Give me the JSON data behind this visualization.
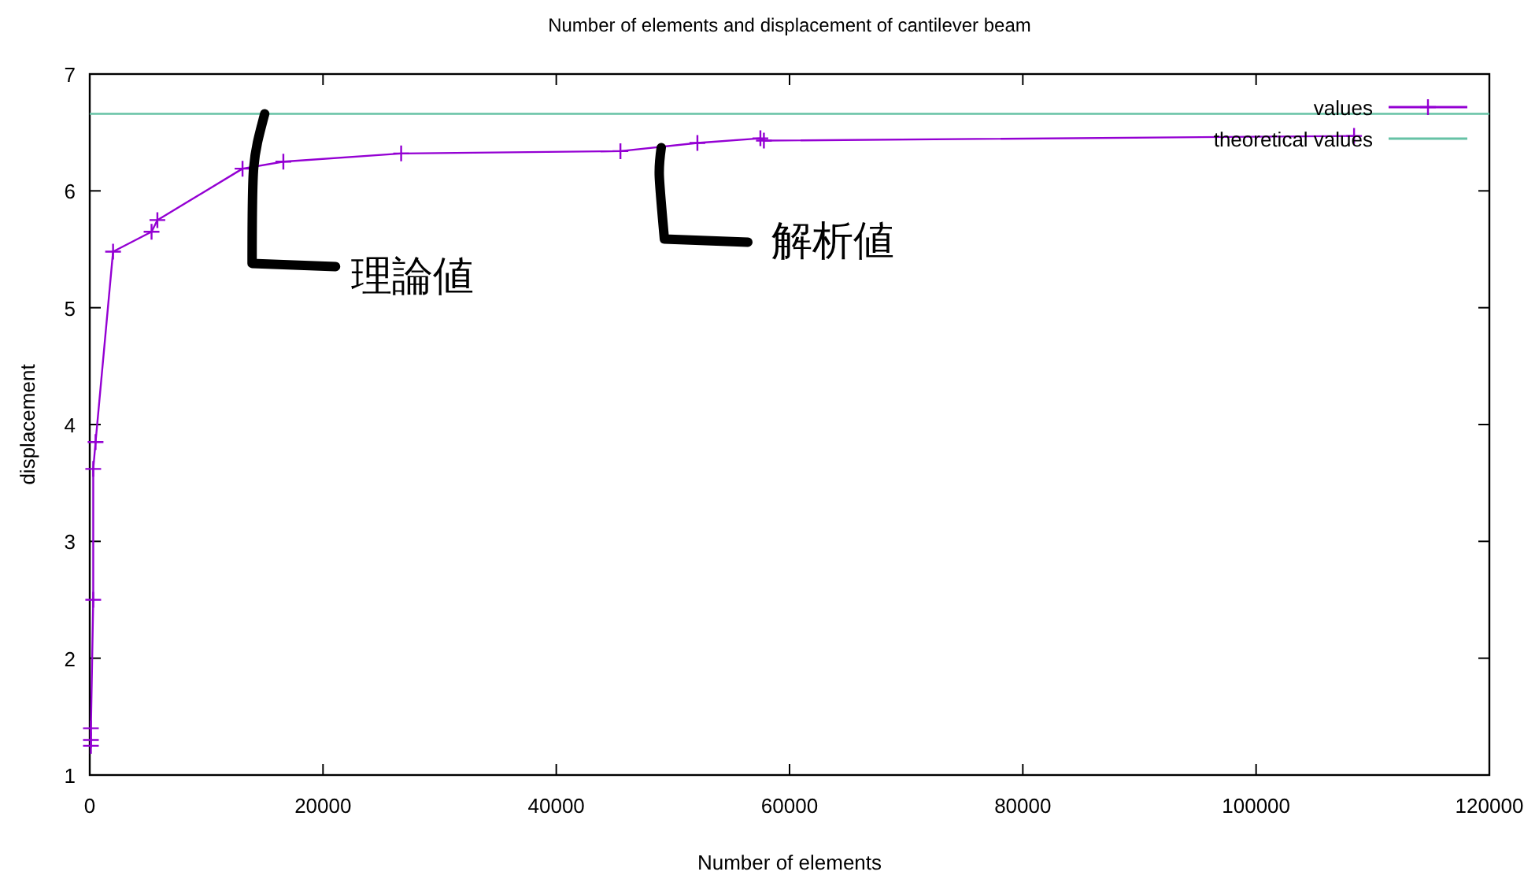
{
  "chart_data": {
    "type": "line",
    "title": "Number of elements and displacement of cantilever beam",
    "xlabel": "Number of elements",
    "ylabel": "displacement",
    "xlim": [
      0,
      120000
    ],
    "xticks": [
      0,
      20000,
      40000,
      60000,
      80000,
      100000,
      120000
    ],
    "ylim": [
      1,
      7
    ],
    "yticks": [
      1,
      2,
      3,
      4,
      5,
      6,
      7
    ],
    "grid": false,
    "legend": "top right",
    "marker": "cross",
    "line_style": "solid",
    "series": [
      {
        "name": "values",
        "color": "#9400d3",
        "x": [
          100,
          100,
          100,
          300,
          300,
          500,
          2000,
          5300,
          5800,
          13100,
          16600,
          26700,
          45500,
          52100,
          57500,
          57800,
          108400
        ],
        "values": [
          1.25,
          1.3,
          1.4,
          2.5,
          3.62,
          3.85,
          5.48,
          5.65,
          5.75,
          6.19,
          6.25,
          6.32,
          6.34,
          6.41,
          6.45,
          6.43,
          6.47
        ]
      },
      {
        "name": "theoretical values",
        "color": "#66c2a5",
        "marker": "none",
        "x": [
          0,
          120000
        ],
        "values": [
          6.66,
          6.66
        ]
      }
    ],
    "annotations": [
      {
        "text": "理論値",
        "x": 15000,
        "y": 6.66
      },
      {
        "text": "解析値",
        "x": 49000,
        "y": 6.37
      }
    ]
  }
}
